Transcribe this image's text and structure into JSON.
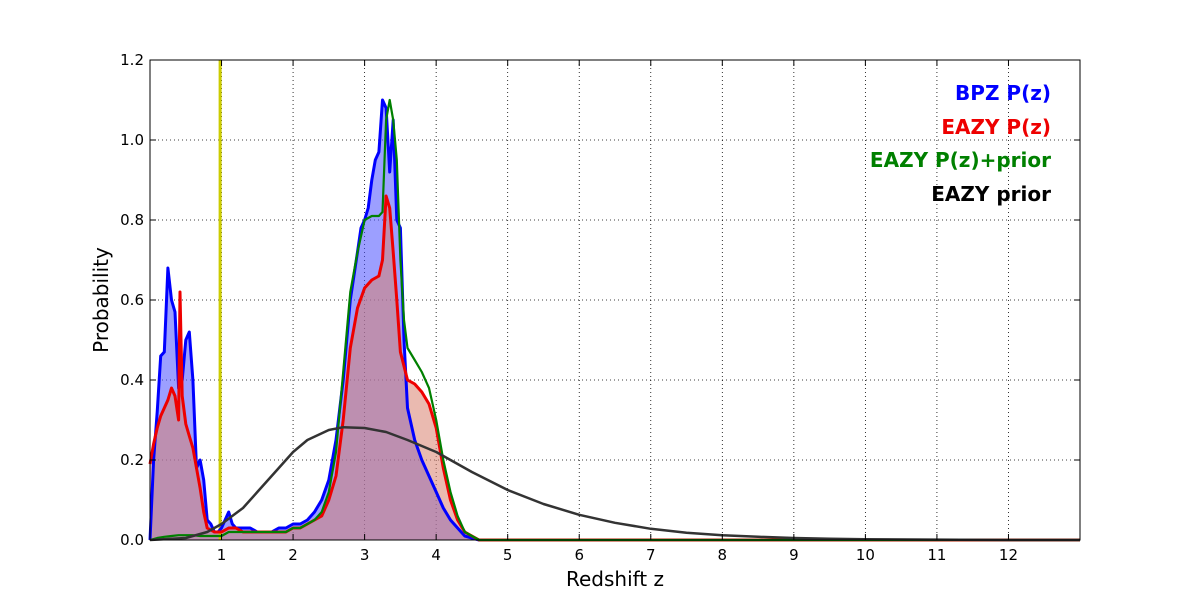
{
  "chart_data": {
    "type": "area",
    "xlabel": "Redshift z",
    "ylabel": "Probability",
    "xlim": [
      0,
      13
    ],
    "ylim": [
      0,
      1.2
    ],
    "x_ticks": [
      "1",
      "2",
      "3",
      "4",
      "5",
      "6",
      "7",
      "8",
      "9",
      "10",
      "11",
      "12"
    ],
    "y_ticks": [
      "0.0",
      "0.2",
      "0.4",
      "0.6",
      "0.8",
      "1.0",
      "1.2"
    ],
    "grid": "dotted",
    "legend_position": "top-right",
    "reference_line": {
      "x": 0.98,
      "color": "#cccc00"
    },
    "series": [
      {
        "name": "BPZ P(z)",
        "color": "#0000ff",
        "fill": "#4b50ff",
        "x": [
          0.0,
          0.05,
          0.1,
          0.15,
          0.2,
          0.25,
          0.3,
          0.35,
          0.4,
          0.45,
          0.5,
          0.55,
          0.6,
          0.65,
          0.7,
          0.75,
          0.8,
          0.85,
          0.9,
          0.95,
          1.0,
          1.05,
          1.1,
          1.15,
          1.2,
          1.3,
          1.4,
          1.5,
          1.6,
          1.7,
          1.8,
          1.9,
          2.0,
          2.1,
          2.2,
          2.3,
          2.4,
          2.5,
          2.6,
          2.7,
          2.8,
          2.9,
          2.95,
          3.0,
          3.05,
          3.1,
          3.15,
          3.2,
          3.25,
          3.3,
          3.35,
          3.4,
          3.45,
          3.5,
          3.55,
          3.6,
          3.7,
          3.8,
          3.9,
          4.0,
          4.1,
          4.2,
          4.3,
          4.4,
          4.5,
          4.6,
          5.0,
          13.0
        ],
        "values": [
          0.0,
          0.2,
          0.32,
          0.46,
          0.47,
          0.68,
          0.6,
          0.57,
          0.38,
          0.4,
          0.5,
          0.52,
          0.4,
          0.18,
          0.2,
          0.15,
          0.05,
          0.04,
          0.02,
          0.02,
          0.03,
          0.05,
          0.07,
          0.04,
          0.03,
          0.03,
          0.03,
          0.02,
          0.02,
          0.02,
          0.03,
          0.03,
          0.04,
          0.04,
          0.05,
          0.07,
          0.1,
          0.15,
          0.25,
          0.4,
          0.6,
          0.72,
          0.78,
          0.8,
          0.83,
          0.9,
          0.95,
          0.97,
          1.1,
          1.08,
          0.92,
          1.05,
          0.8,
          0.78,
          0.5,
          0.33,
          0.25,
          0.2,
          0.16,
          0.12,
          0.08,
          0.05,
          0.03,
          0.01,
          0.005,
          0.0,
          0.0,
          0.0
        ]
      },
      {
        "name": "EAZY P(z)",
        "color": "#ee0000",
        "fill": "#d9826f",
        "x": [
          0.0,
          0.05,
          0.1,
          0.15,
          0.2,
          0.25,
          0.3,
          0.35,
          0.4,
          0.42,
          0.45,
          0.5,
          0.55,
          0.6,
          0.65,
          0.7,
          0.75,
          0.8,
          0.9,
          1.0,
          1.1,
          1.2,
          1.3,
          1.4,
          1.5,
          1.6,
          1.7,
          1.8,
          1.9,
          2.0,
          2.1,
          2.2,
          2.3,
          2.4,
          2.5,
          2.6,
          2.7,
          2.8,
          2.9,
          3.0,
          3.1,
          3.2,
          3.25,
          3.3,
          3.35,
          3.4,
          3.45,
          3.5,
          3.6,
          3.7,
          3.8,
          3.9,
          4.0,
          4.1,
          4.2,
          4.3,
          4.4,
          4.5,
          4.6,
          5.0,
          13.0
        ],
        "values": [
          0.19,
          0.24,
          0.28,
          0.31,
          0.33,
          0.35,
          0.38,
          0.36,
          0.3,
          0.62,
          0.36,
          0.29,
          0.26,
          0.23,
          0.18,
          0.13,
          0.07,
          0.03,
          0.02,
          0.02,
          0.03,
          0.03,
          0.02,
          0.02,
          0.02,
          0.02,
          0.02,
          0.02,
          0.02,
          0.03,
          0.03,
          0.04,
          0.05,
          0.06,
          0.1,
          0.16,
          0.3,
          0.48,
          0.58,
          0.63,
          0.65,
          0.66,
          0.7,
          0.86,
          0.83,
          0.72,
          0.6,
          0.47,
          0.4,
          0.39,
          0.37,
          0.34,
          0.28,
          0.18,
          0.1,
          0.05,
          0.02,
          0.01,
          0.0,
          0.0,
          0.0
        ]
      },
      {
        "name": "EAZY P(z)+prior",
        "color": "#008000",
        "x": [
          0.0,
          0.1,
          0.2,
          0.3,
          0.4,
          0.5,
          0.6,
          0.7,
          0.8,
          0.9,
          1.0,
          1.1,
          1.2,
          1.3,
          1.4,
          1.5,
          1.6,
          1.7,
          1.8,
          1.9,
          2.0,
          2.1,
          2.2,
          2.3,
          2.4,
          2.5,
          2.6,
          2.7,
          2.8,
          2.9,
          3.0,
          3.1,
          3.2,
          3.25,
          3.3,
          3.35,
          3.4,
          3.45,
          3.5,
          3.55,
          3.6,
          3.7,
          3.8,
          3.9,
          4.0,
          4.1,
          4.2,
          4.3,
          4.4,
          4.5,
          4.6,
          5.0,
          13.0
        ],
        "values": [
          0.0,
          0.005,
          0.008,
          0.01,
          0.012,
          0.012,
          0.012,
          0.01,
          0.01,
          0.01,
          0.01,
          0.02,
          0.02,
          0.02,
          0.02,
          0.02,
          0.02,
          0.02,
          0.02,
          0.02,
          0.03,
          0.03,
          0.04,
          0.05,
          0.07,
          0.12,
          0.22,
          0.42,
          0.62,
          0.72,
          0.8,
          0.81,
          0.81,
          0.82,
          1.05,
          1.1,
          1.05,
          0.95,
          0.7,
          0.55,
          0.48,
          0.45,
          0.42,
          0.38,
          0.3,
          0.2,
          0.12,
          0.06,
          0.02,
          0.01,
          0.0,
          0.0,
          0.0
        ]
      },
      {
        "name": "EAZY prior",
        "color": "#333333",
        "x": [
          0.0,
          0.5,
          0.8,
          1.0,
          1.3,
          1.5,
          1.8,
          2.0,
          2.2,
          2.5,
          2.7,
          3.0,
          3.3,
          3.6,
          4.0,
          4.5,
          5.0,
          5.5,
          6.0,
          6.5,
          7.0,
          7.5,
          8.0,
          8.5,
          9.0,
          9.5,
          10.0,
          11.0,
          12.0,
          13.0
        ],
        "values": [
          0.0,
          0.005,
          0.02,
          0.04,
          0.08,
          0.12,
          0.18,
          0.22,
          0.25,
          0.275,
          0.282,
          0.28,
          0.27,
          0.25,
          0.22,
          0.17,
          0.125,
          0.09,
          0.063,
          0.043,
          0.028,
          0.018,
          0.012,
          0.008,
          0.005,
          0.003,
          0.002,
          0.001,
          0.0,
          0.0
        ]
      }
    ]
  }
}
